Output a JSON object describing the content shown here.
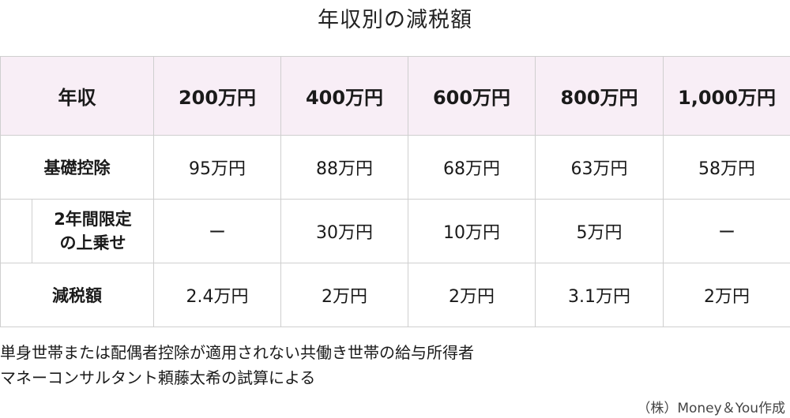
{
  "title": "年収別の減税額",
  "table": {
    "header": [
      "年収",
      "200万円",
      "400万円",
      "600万円",
      "800万円",
      "1,000万円"
    ],
    "rows": [
      {
        "label": "基礎控除",
        "values": [
          "95万円",
          "88万円",
          "68万円",
          "63万円",
          "58万円"
        ]
      },
      {
        "label_line1": "2年間限定",
        "label_line2": "の上乗せ",
        "values": [
          "ー",
          "30万円",
          "10万円",
          "5万円",
          "ー"
        ]
      },
      {
        "label": "減税額",
        "values": [
          "2.4万円",
          "2万円",
          "2万円",
          "3.1万円",
          "2万円"
        ]
      }
    ]
  },
  "notes": [
    "単身世帯または配偶者控除が適用されない共働き世帯の給与所得者",
    "マネーコンサルタント頼藤太希の試算による"
  ],
  "credit": "（株）Money＆You作成"
}
